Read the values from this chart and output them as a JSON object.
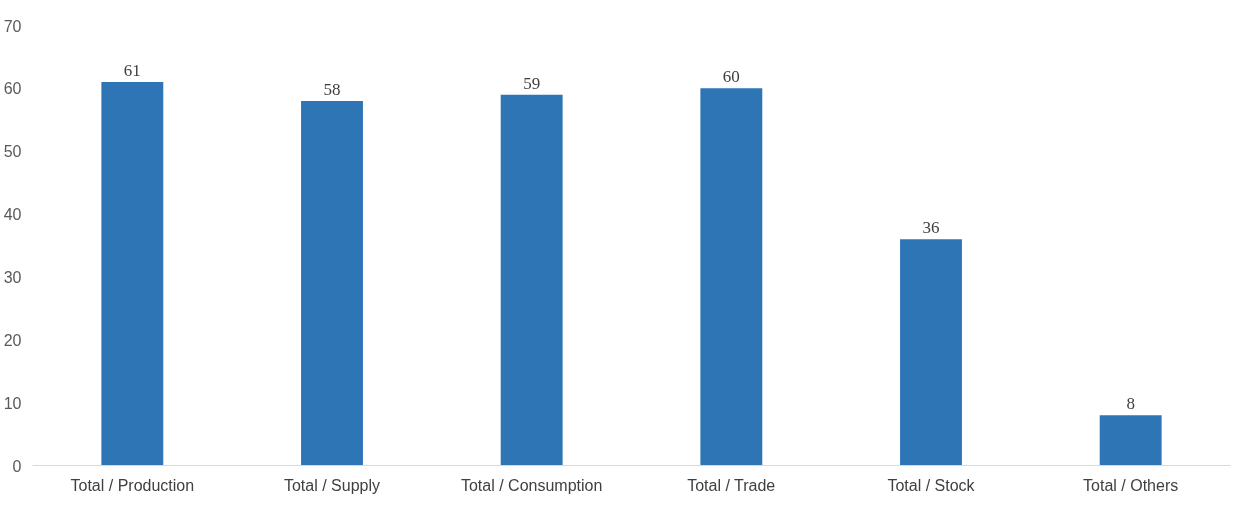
{
  "chart_data": {
    "type": "bar",
    "categories": [
      "Total / Production",
      "Total / Supply",
      "Total / Consumption",
      "Total / Trade",
      "Total / Stock",
      "Total / Others"
    ],
    "values": [
      61,
      58,
      59,
      60,
      36,
      8
    ],
    "color": "#2e75b6",
    "ylim": [
      0,
      70
    ],
    "yticks": [
      0,
      10,
      20,
      30,
      40,
      50,
      60,
      70
    ],
    "data_labels": true
  }
}
